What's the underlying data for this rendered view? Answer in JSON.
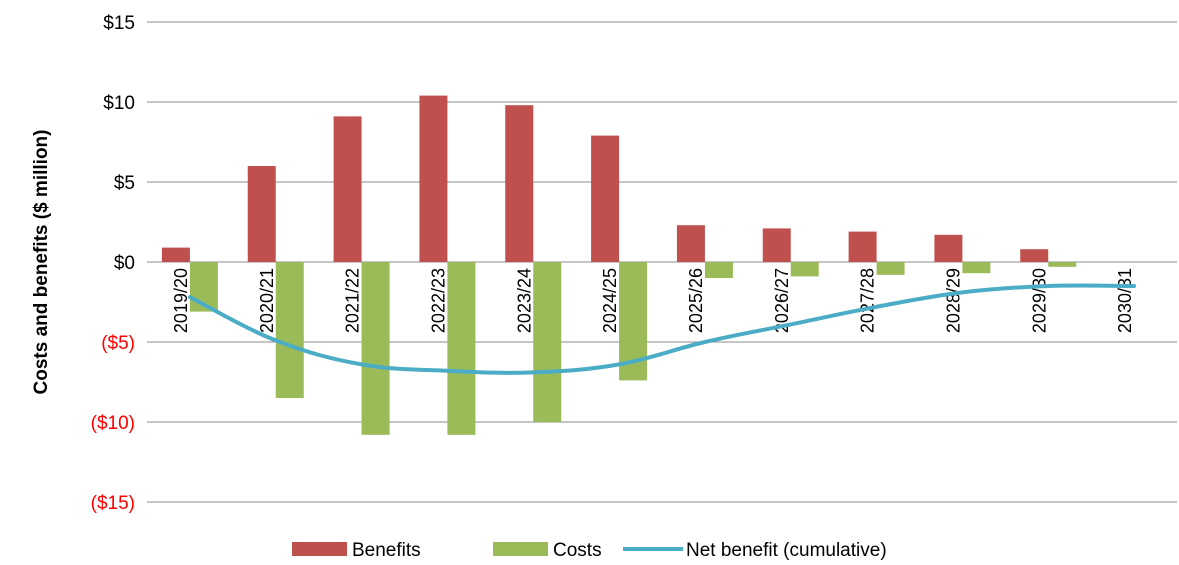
{
  "chart_data": {
    "type": "bar",
    "title": "",
    "xlabel": "",
    "ylabel": "Costs and benefits ($ million)",
    "ylim": [
      -15,
      15
    ],
    "y_ticks": [
      {
        "value": 15,
        "label": "$15"
      },
      {
        "value": 10,
        "label": "$10"
      },
      {
        "value": 5,
        "label": "$5"
      },
      {
        "value": 0,
        "label": "$0"
      },
      {
        "value": -5,
        "label": "($5)"
      },
      {
        "value": -10,
        "label": "($10)"
      },
      {
        "value": -15,
        "label": "($15)"
      }
    ],
    "grid": true,
    "legend_position": "bottom",
    "categories": [
      "2019/20",
      "2020/21",
      "2021/22",
      "2022/23",
      "2023/24",
      "2024/25",
      "2025/26",
      "2026/27",
      "2027/28",
      "2028/29",
      "2029/30",
      "2030/31"
    ],
    "series": [
      {
        "name": "Benefits",
        "kind": "bar",
        "color": "#C0504D",
        "values": [
          0.9,
          6.0,
          9.1,
          10.4,
          9.8,
          7.9,
          2.3,
          2.1,
          1.9,
          1.7,
          0.8,
          0.0
        ]
      },
      {
        "name": "Costs",
        "kind": "bar",
        "color": "#9BBB59",
        "values": [
          -3.1,
          -8.5,
          -10.8,
          -10.8,
          -10.0,
          -7.4,
          -1.0,
          -0.9,
          -0.8,
          -0.7,
          -0.3,
          0.0
        ]
      },
      {
        "name": "Net benefit (cumulative)",
        "kind": "line",
        "color": "#4BACC6",
        "values": [
          -2.2,
          -4.9,
          -6.4,
          -6.8,
          -6.9,
          -6.4,
          -5.0,
          -3.9,
          -2.8,
          -1.9,
          -1.5,
          -1.5
        ]
      }
    ],
    "negative_tick_color": "#FF0000"
  }
}
